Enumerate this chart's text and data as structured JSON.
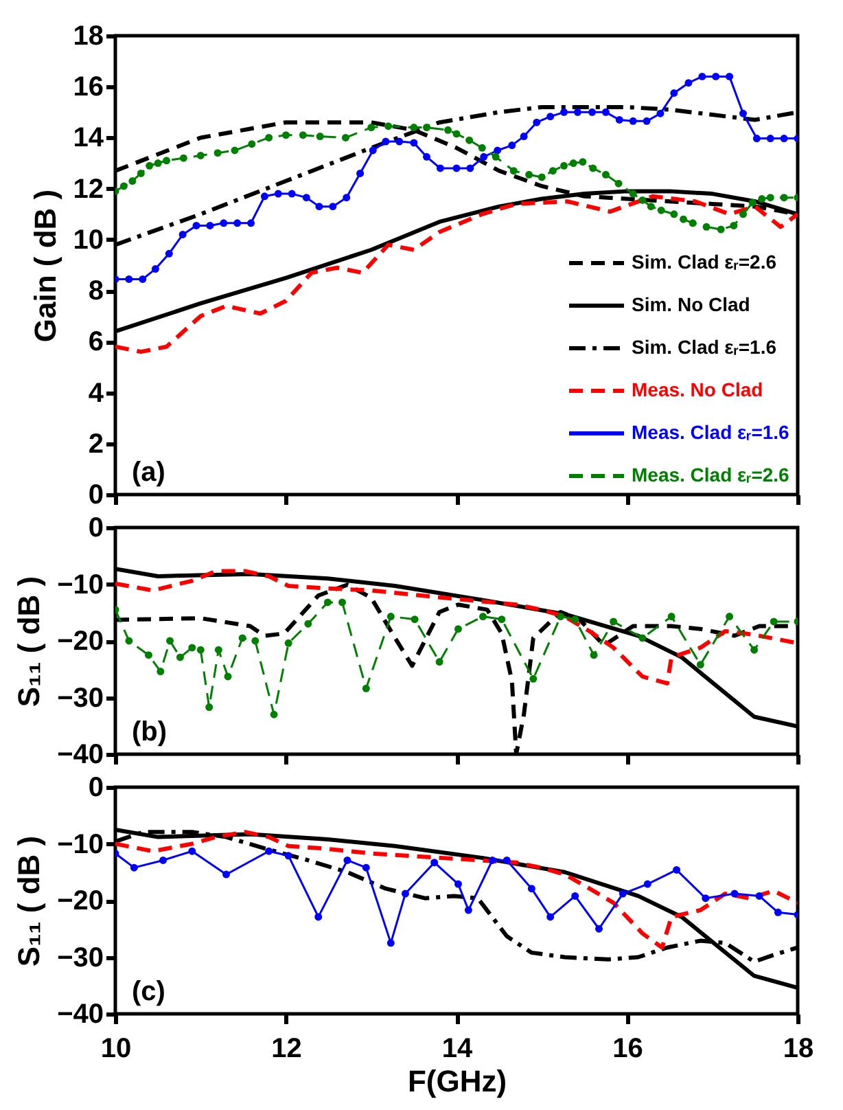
{
  "chart_data": [
    {
      "type": "line",
      "ylabel": "Gain ( dB )",
      "xlim": [
        10,
        18
      ],
      "xticks": [
        10,
        12,
        14,
        16,
        18
      ],
      "ylim": [
        0,
        18
      ],
      "yticks": [
        0,
        2,
        4,
        6,
        8,
        10,
        12,
        14,
        16,
        18
      ],
      "tick_labels": "y",
      "legend": "bottom right",
      "annotations": [
        "(a)"
      ],
      "series": [
        {
          "name": "Sim. Clad εᵣ=2.6",
          "color": "#000000",
          "line_style": "dashed",
          "x": [
            10,
            11,
            12,
            13,
            13.5,
            14,
            14.5,
            15,
            15.5,
            16,
            16.5,
            17,
            17.5,
            18
          ],
          "values": [
            12.7,
            14.0,
            14.6,
            14.6,
            14.3,
            13.6,
            12.7,
            12.1,
            11.7,
            11.6,
            11.5,
            11.4,
            11.3,
            11.0
          ]
        },
        {
          "name": "Sim. No Clad",
          "color": "#000000",
          "line_style": "solid",
          "x": [
            10,
            11,
            12,
            13,
            13.8,
            14.5,
            15,
            15.5,
            16,
            16.5,
            17,
            17.5,
            18
          ],
          "values": [
            6.4,
            7.5,
            8.5,
            9.6,
            10.7,
            11.3,
            11.6,
            11.8,
            11.9,
            11.9,
            11.8,
            11.5,
            11.0
          ]
        },
        {
          "name": "Sim. Clad εᵣ=1.6",
          "color": "#000000",
          "line_style": "dashdot",
          "x": [
            10,
            11,
            12,
            13,
            13.8,
            14.5,
            15,
            15.5,
            16,
            16.5,
            17,
            17.5,
            18
          ],
          "values": [
            9.8,
            11.0,
            12.3,
            13.6,
            14.6,
            15.0,
            15.2,
            15.2,
            15.2,
            15.1,
            14.9,
            14.7,
            15.0
          ]
        },
        {
          "name": "Meas. No Clad",
          "color": "#ff0000",
          "line_style": "dashed",
          "x": [
            10,
            10.3,
            10.6,
            11,
            11.3,
            11.7,
            12,
            12.3,
            12.6,
            12.9,
            13.2,
            13.5,
            13.8,
            14.3,
            14.7,
            15.3,
            15.8,
            16.3,
            16.8,
            17.2,
            17.5,
            17.8,
            18
          ],
          "values": [
            5.8,
            5.6,
            5.8,
            7.0,
            7.4,
            7.1,
            7.6,
            8.7,
            8.9,
            8.7,
            9.8,
            9.6,
            10.3,
            11.0,
            11.4,
            11.5,
            11.1,
            11.7,
            11.5,
            11.0,
            11.3,
            10.5,
            11.0
          ]
        },
        {
          "name": "Meas. Clad εᵣ=1.6",
          "color": "#0000ff",
          "line_style": "solid",
          "marker": "circle",
          "x": [
            10,
            10.16,
            10.32,
            10.47,
            10.63,
            10.79,
            10.95,
            11.11,
            11.27,
            11.43,
            11.59,
            11.75,
            11.91,
            12.07,
            12.24,
            12.39,
            12.55,
            12.71,
            12.87,
            13.02,
            13.17,
            13.33,
            13.5,
            13.65,
            13.81,
            14.0,
            14.16,
            14.32,
            14.48,
            14.65,
            14.79,
            14.94,
            15.1,
            15.26,
            15.42,
            15.59,
            15.75,
            15.91,
            16.07,
            16.23,
            16.39,
            16.55,
            16.72,
            16.88,
            17.04,
            17.2,
            17.36,
            17.52,
            17.68,
            17.84,
            18
          ],
          "values": [
            8.45,
            8.45,
            8.45,
            8.85,
            9.45,
            10.2,
            10.55,
            10.55,
            10.65,
            10.65,
            10.65,
            11.7,
            11.8,
            11.8,
            11.65,
            11.3,
            11.3,
            11.65,
            12.6,
            13.5,
            13.85,
            13.85,
            13.8,
            13.25,
            12.8,
            12.8,
            12.8,
            13.25,
            13.5,
            13.7,
            14.05,
            14.6,
            14.83,
            15.0,
            15.0,
            15.0,
            15.0,
            14.7,
            14.65,
            14.65,
            14.95,
            15.75,
            16.15,
            16.4,
            16.4,
            16.4,
            14.95,
            13.97,
            13.97,
            13.97,
            13.97
          ]
        },
        {
          "name": "Meas. Clad εᵣ=2.6",
          "color": "#008000",
          "line_style": "dashed",
          "marker": "circle",
          "x": [
            10,
            10.1,
            10.2,
            10.3,
            10.4,
            10.5,
            10.6,
            10.8,
            11,
            11.2,
            11.4,
            11.6,
            11.8,
            12,
            12.2,
            12.4,
            12.7,
            13,
            13.2,
            13.5,
            13.65,
            13.9,
            14,
            14.15,
            14.3,
            14.46,
            14.67,
            14.85,
            15,
            15.13,
            15.26,
            15.37,
            15.48,
            15.6,
            15.75,
            15.9,
            16.07,
            16.18,
            16.28,
            16.4,
            16.55,
            16.66,
            16.77,
            16.93,
            17.1,
            17.25,
            17.36,
            17.47,
            17.58,
            17.68,
            17.84,
            18
          ],
          "values": [
            11.9,
            12.1,
            12.3,
            12.6,
            12.9,
            13.0,
            13.1,
            13.2,
            13.3,
            13.4,
            13.5,
            13.75,
            14.0,
            14.1,
            14.1,
            14.05,
            14.0,
            14.4,
            14.45,
            14.4,
            14.4,
            14.3,
            14.15,
            13.9,
            13.6,
            13.25,
            12.7,
            12.55,
            12.45,
            12.7,
            12.9,
            13.0,
            13.05,
            12.8,
            12.55,
            12.2,
            11.8,
            11.55,
            11.3,
            11.15,
            11.0,
            10.8,
            10.65,
            10.5,
            10.4,
            10.55,
            11.0,
            11.45,
            11.6,
            11.65,
            11.65,
            11.65
          ]
        }
      ]
    },
    {
      "type": "line",
      "ylabel": "S₁₁ ( dB )",
      "xlim": [
        10,
        18
      ],
      "xticks": [
        10,
        12,
        14,
        16,
        18
      ],
      "ylim": [
        -40,
        0
      ],
      "yticks": [
        -40,
        -30,
        -20,
        -10,
        0
      ],
      "tick_labels": "y",
      "annotations": [
        "(b)"
      ],
      "series": [
        {
          "color": "#000000",
          "line_style": "solid",
          "x": [
            10,
            10.5,
            11.58,
            12.49,
            13.28,
            14.31,
            15.27,
            16.13,
            16.64,
            17.49,
            18
          ],
          "values": [
            -7.3,
            -8.6,
            -8.2,
            -9.0,
            -10.3,
            -12.8,
            -15.3,
            -19.1,
            -22.9,
            -33.4,
            -35.1
          ]
        },
        {
          "color": "#000000",
          "line_style": "dashed",
          "x": [
            10,
            11,
            11.58,
            11.75,
            11.98,
            12.38,
            12.72,
            13,
            13.28,
            13.48,
            13.8,
            14.02,
            14.36,
            14.53,
            14.65,
            14.7,
            14.79,
            14.9,
            15.22,
            15.44,
            15.73,
            16.07,
            16.52,
            16.86,
            17.26,
            17.55,
            18
          ],
          "values": [
            -16.3,
            -16,
            -17.4,
            -19.1,
            -18.7,
            -12,
            -10.1,
            -12.4,
            -19.5,
            -24.4,
            -14.9,
            -13.6,
            -14.5,
            -18.7,
            -27.1,
            -40,
            -33,
            -19.5,
            -14.9,
            -16.2,
            -20.8,
            -17.4,
            -17.4,
            -17.9,
            -19.1,
            -17.4,
            -17.4
          ]
        },
        {
          "color": "#ff0000",
          "line_style": "dashed",
          "x": [
            10,
            10.44,
            10.9,
            11.18,
            11.52,
            11.8,
            12.03,
            12.43,
            13,
            13.85,
            14.7,
            14.99,
            15.27,
            15.56,
            15.84,
            16.18,
            16.47,
            16.52,
            16.86,
            17.15,
            17.38,
            17.55,
            18
          ],
          "values": [
            -9.9,
            -11.1,
            -9.4,
            -7.7,
            -7.7,
            -8.6,
            -10.3,
            -10.7,
            -11.1,
            -12.4,
            -13.6,
            -14.5,
            -15.7,
            -18.3,
            -21.2,
            -26.3,
            -27.5,
            -22.9,
            -21.2,
            -18.3,
            -18.7,
            -19.1,
            -20.4
          ]
        },
        {
          "color": "#008000",
          "line_style": "dashed",
          "marker": "circle",
          "x": [
            10,
            10.16,
            10.39,
            10.53,
            10.64,
            10.76,
            10.9,
            11,
            11.1,
            11.21,
            11.32,
            11.49,
            11.64,
            11.86,
            12.03,
            12.26,
            12.49,
            12.66,
            12.94,
            13.23,
            13.51,
            13.8,
            14.02,
            14.31,
            14.53,
            14.9,
            15.22,
            15.39,
            15.61,
            15.84,
            16.18,
            16.52,
            16.86,
            17.2,
            17.49,
            17.72,
            18
          ],
          "values": [
            -14.5,
            -20,
            -22.5,
            -25.4,
            -20,
            -22.9,
            -21.2,
            -21.6,
            -31.7,
            -21.6,
            -26.3,
            -19.5,
            -20,
            -33,
            -20.4,
            -17,
            -13.2,
            -13.2,
            -28.4,
            -15.7,
            -16.2,
            -23.7,
            -17.9,
            -15.7,
            -16.2,
            -26.7,
            -15.7,
            -16.2,
            -22.5,
            -16.6,
            -19.5,
            -15.7,
            -24.2,
            -15.7,
            -21.6,
            -16.6,
            -16.6
          ]
        }
      ]
    },
    {
      "type": "line",
      "xlabel": "F(GHz)",
      "ylabel": "S₁₁ ( dB )",
      "xlim": [
        10,
        18
      ],
      "xticks": [
        10,
        12,
        14,
        16,
        18
      ],
      "ylim": [
        -40,
        0
      ],
      "yticks": [
        -40,
        -30,
        -20,
        -10,
        0
      ],
      "annotations": [
        "(c)"
      ],
      "series": [
        {
          "color": "#000000",
          "line_style": "solid",
          "x": [
            10,
            10.5,
            11.58,
            12.49,
            13.28,
            14.31,
            15.27,
            16.13,
            16.64,
            17.49,
            18
          ],
          "values": [
            -7.5,
            -8.8,
            -8.3,
            -9.2,
            -10.4,
            -12.5,
            -15,
            -19.2,
            -22.9,
            -33.3,
            -35.4
          ]
        },
        {
          "color": "#000000",
          "line_style": "dashdot",
          "x": [
            10,
            10.33,
            10.9,
            11.3,
            11.75,
            12.26,
            12.72,
            13.17,
            13.63,
            13.97,
            14.25,
            14.59,
            14.88,
            15.27,
            15.78,
            16.13,
            16.47,
            16.86,
            17.15,
            17.49,
            17.72,
            18
          ],
          "values": [
            -9.6,
            -7.9,
            -7.9,
            -8.8,
            -10.8,
            -12.9,
            -15,
            -17.9,
            -19.6,
            -19.2,
            -19.6,
            -26.3,
            -29.2,
            -30,
            -30.4,
            -30,
            -28.3,
            -27.1,
            -27.5,
            -30.8,
            -29.6,
            -28.3
          ]
        },
        {
          "color": "#ff0000",
          "line_style": "dashed",
          "x": [
            10,
            10.44,
            10.9,
            11.18,
            11.52,
            11.8,
            12.03,
            12.43,
            13,
            13.85,
            14.7,
            14.99,
            15.27,
            15.56,
            15.84,
            16.18,
            16.41,
            16.52,
            16.86,
            17.15,
            17.43,
            17.72,
            18
          ],
          "values": [
            -10,
            -11.3,
            -10,
            -8.8,
            -7.9,
            -8.8,
            -10.4,
            -10.8,
            -11.7,
            -12.5,
            -13.3,
            -14.2,
            -15.4,
            -17.9,
            -20.4,
            -25.8,
            -28.3,
            -22.9,
            -21.7,
            -18.8,
            -19.6,
            -18.3,
            -20.4
          ]
        },
        {
          "color": "#0000ff",
          "line_style": "solid",
          "marker": "circle",
          "x": [
            10,
            10.22,
            10.56,
            10.9,
            11.3,
            11.8,
            12.03,
            12.38,
            12.72,
            12.94,
            13.23,
            13.4,
            13.74,
            14.02,
            14.14,
            14.42,
            14.59,
            14.88,
            15.1,
            15.39,
            15.67,
            15.95,
            16.24,
            16.58,
            16.92,
            17.26,
            17.55,
            17.77,
            18
          ],
          "values": [
            -11.7,
            -14.2,
            -12.9,
            -11.3,
            -15.4,
            -11.3,
            -12.1,
            -22.9,
            -12.9,
            -14.2,
            -27.5,
            -18.8,
            -13.3,
            -17.1,
            -21.7,
            -12.9,
            -12.9,
            -17.9,
            -22.9,
            -19.2,
            -25,
            -18.8,
            -17.1,
            -14.6,
            -19.6,
            -18.8,
            -19.2,
            -22.1,
            -22.5
          ]
        }
      ]
    }
  ]
}
